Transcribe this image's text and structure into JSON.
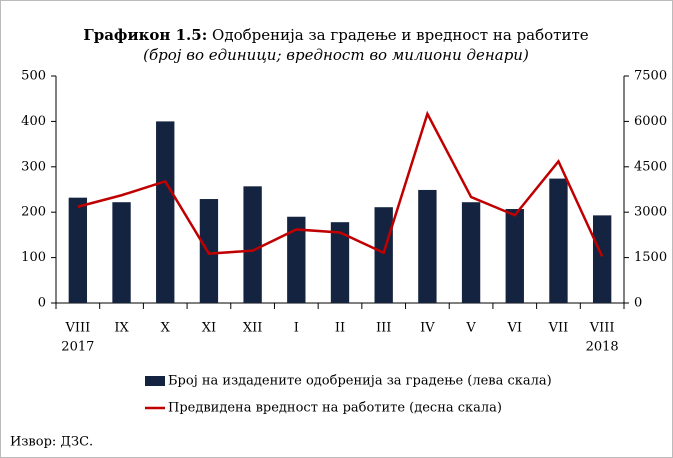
{
  "chart_data": {
    "type": "bar_line",
    "title_label": "Графикон 1.5:",
    "title": "Одобренија за градење и вредност на работите",
    "subtitle": "(број во единици; вредност во милиони денари)",
    "categories": [
      "VIII",
      "IX",
      "X",
      "XI",
      "XII",
      "I",
      "II",
      "III",
      "IV",
      "V",
      "VI",
      "VII",
      "VIII"
    ],
    "category_years": [
      "2017",
      null,
      null,
      null,
      null,
      null,
      null,
      null,
      null,
      null,
      null,
      null,
      "2018"
    ],
    "series": [
      {
        "name": "Број на издадените одобренија за градење  (лева скала)",
        "color": "#14233f",
        "kind": "bar",
        "axis": "y",
        "values": [
          232,
          222,
          400,
          229,
          257,
          190,
          178,
          211,
          249,
          222,
          207,
          274,
          193
        ]
      },
      {
        "name": "Предвидена вредност на работите (десна скала)",
        "color": "#c00000",
        "kind": "line",
        "axis": "y2",
        "values": [
          3180,
          3560,
          4020,
          1630,
          1730,
          2430,
          2330,
          1660,
          6250,
          3500,
          2900,
          4680,
          1540
        ]
      }
    ],
    "ylim": [
      0,
      500
    ],
    "yticks": [
      0,
      100,
      200,
      300,
      400,
      500
    ],
    "y2lim": [
      0,
      7500
    ],
    "y2ticks": [
      0,
      1500,
      3000,
      4500,
      6000,
      7500
    ],
    "source": "Извор: ДЗС."
  }
}
